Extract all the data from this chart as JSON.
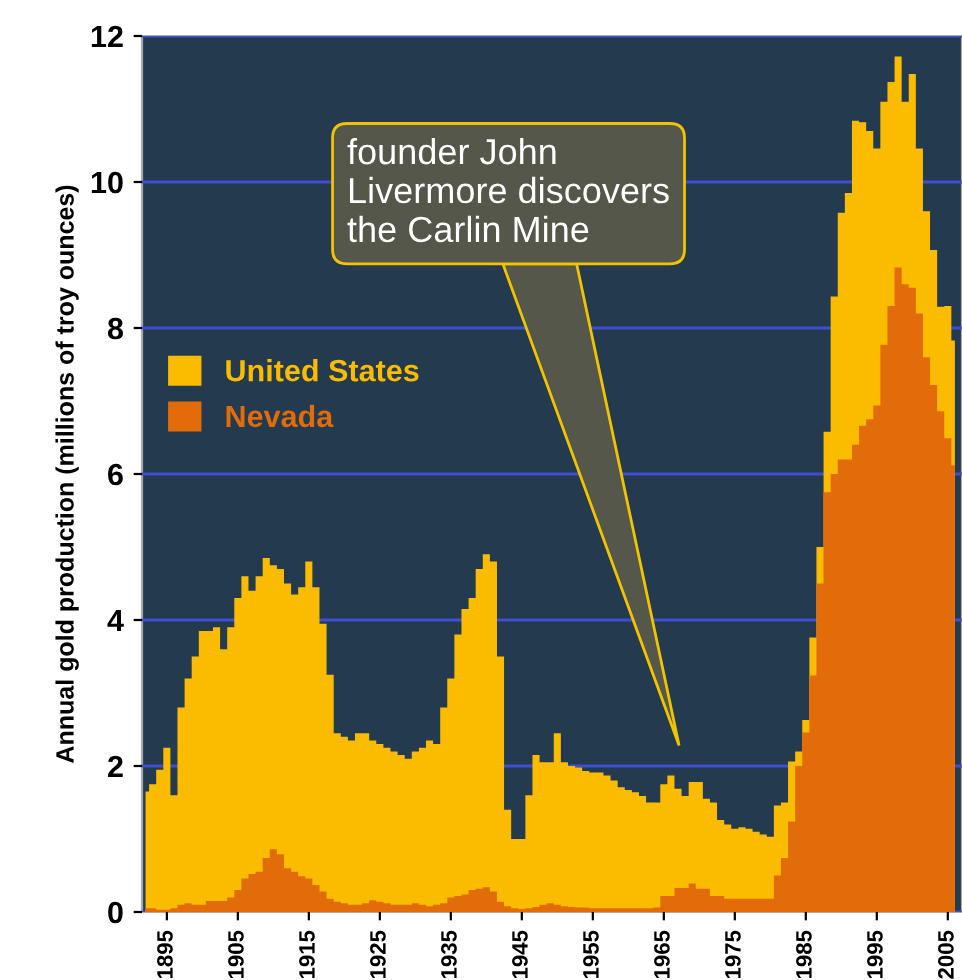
{
  "chart_data": {
    "type": "area",
    "ylabel": "Annual gold production (millions of troy ounces)",
    "x": [
      1892,
      1893,
      1894,
      1895,
      1896,
      1897,
      1898,
      1899,
      1900,
      1901,
      1902,
      1903,
      1904,
      1905,
      1906,
      1907,
      1908,
      1909,
      1910,
      1911,
      1912,
      1913,
      1914,
      1915,
      1916,
      1917,
      1918,
      1919,
      1920,
      1921,
      1922,
      1923,
      1924,
      1925,
      1926,
      1927,
      1928,
      1929,
      1930,
      1931,
      1932,
      1933,
      1934,
      1935,
      1936,
      1937,
      1938,
      1939,
      1940,
      1941,
      1942,
      1943,
      1944,
      1945,
      1946,
      1947,
      1948,
      1949,
      1950,
      1951,
      1952,
      1953,
      1954,
      1955,
      1956,
      1957,
      1958,
      1959,
      1960,
      1961,
      1962,
      1963,
      1964,
      1965,
      1966,
      1967,
      1968,
      1969,
      1970,
      1971,
      1972,
      1973,
      1974,
      1975,
      1976,
      1977,
      1978,
      1979,
      1980,
      1981,
      1982,
      1983,
      1984,
      1985,
      1986,
      1987,
      1988,
      1989,
      1990,
      1991,
      1992,
      1993,
      1994,
      1995,
      1996,
      1997,
      1998,
      1999,
      2000,
      2001,
      2002,
      2003,
      2004,
      2005,
      2006
    ],
    "series": [
      {
        "name": "United States",
        "color": "#fbbc00",
        "values": [
          1.65,
          1.75,
          1.95,
          2.25,
          1.6,
          2.8,
          3.2,
          3.5,
          3.85,
          3.85,
          3.9,
          3.6,
          3.9,
          4.3,
          4.6,
          4.4,
          4.6,
          4.85,
          4.75,
          4.7,
          4.5,
          4.35,
          4.45,
          4.8,
          4.45,
          3.95,
          3.25,
          2.45,
          2.4,
          2.35,
          2.45,
          2.45,
          2.35,
          2.3,
          2.25,
          2.2,
          2.15,
          2.1,
          2.2,
          2.25,
          2.35,
          2.3,
          2.8,
          3.2,
          3.8,
          4.15,
          4.3,
          4.7,
          4.9,
          4.8,
          3.5,
          1.4,
          1.0,
          1.0,
          1.6,
          2.15,
          2.05,
          2.05,
          2.45,
          2.05,
          2.0,
          1.98,
          1.93,
          1.91,
          1.91,
          1.87,
          1.8,
          1.71,
          1.67,
          1.64,
          1.59,
          1.5,
          1.5,
          1.75,
          1.87,
          1.69,
          1.59,
          1.78,
          1.78,
          1.55,
          1.5,
          1.26,
          1.2,
          1.14,
          1.16,
          1.14,
          1.1,
          1.06,
          1.03,
          1.46,
          1.5,
          2.06,
          2.2,
          2.63,
          3.76,
          5.0,
          6.58,
          8.43,
          9.58,
          9.85,
          10.84,
          10.82,
          10.7,
          10.46,
          11.1,
          11.37,
          11.72,
          11.1,
          11.48,
          10.46,
          9.6,
          9.07,
          8.29,
          8.3,
          7.83
        ]
      },
      {
        "name": "Nevada",
        "color": "#e36c0a",
        "values": [
          0.05,
          0.05,
          0.03,
          0.03,
          0.05,
          0.1,
          0.12,
          0.1,
          0.1,
          0.15,
          0.15,
          0.15,
          0.2,
          0.3,
          0.46,
          0.52,
          0.55,
          0.74,
          0.86,
          0.79,
          0.6,
          0.55,
          0.49,
          0.46,
          0.37,
          0.28,
          0.18,
          0.14,
          0.12,
          0.1,
          0.1,
          0.12,
          0.16,
          0.14,
          0.12,
          0.1,
          0.1,
          0.1,
          0.12,
          0.1,
          0.08,
          0.1,
          0.12,
          0.2,
          0.22,
          0.24,
          0.3,
          0.32,
          0.34,
          0.28,
          0.14,
          0.08,
          0.05,
          0.04,
          0.05,
          0.07,
          0.1,
          0.12,
          0.1,
          0.08,
          0.07,
          0.06,
          0.06,
          0.05,
          0.05,
          0.05,
          0.05,
          0.05,
          0.05,
          0.05,
          0.05,
          0.05,
          0.06,
          0.22,
          0.22,
          0.33,
          0.33,
          0.39,
          0.32,
          0.32,
          0.22,
          0.22,
          0.18,
          0.18,
          0.18,
          0.18,
          0.18,
          0.18,
          0.18,
          0.5,
          0.74,
          1.24,
          2.0,
          2.46,
          3.24,
          4.5,
          5.75,
          6.0,
          6.2,
          6.2,
          6.4,
          6.66,
          6.75,
          6.94,
          7.77,
          8.3,
          8.83,
          8.6,
          8.55,
          8.2,
          7.6,
          7.22,
          6.86,
          6.49,
          6.12
        ]
      }
    ],
    "xlim": [
      1891.5,
      2007
    ],
    "xticks": [
      1895,
      1905,
      1915,
      1925,
      1935,
      1945,
      1955,
      1965,
      1975,
      1985,
      1995,
      2005
    ],
    "ylim": [
      0,
      12
    ],
    "yticks": [
      0,
      2,
      4,
      6,
      8,
      10,
      12
    ],
    "grid": "y",
    "legend": "center left",
    "annotations": [
      "founder John\nLivermore discovers\nthe Carlin Mine"
    ]
  }
}
